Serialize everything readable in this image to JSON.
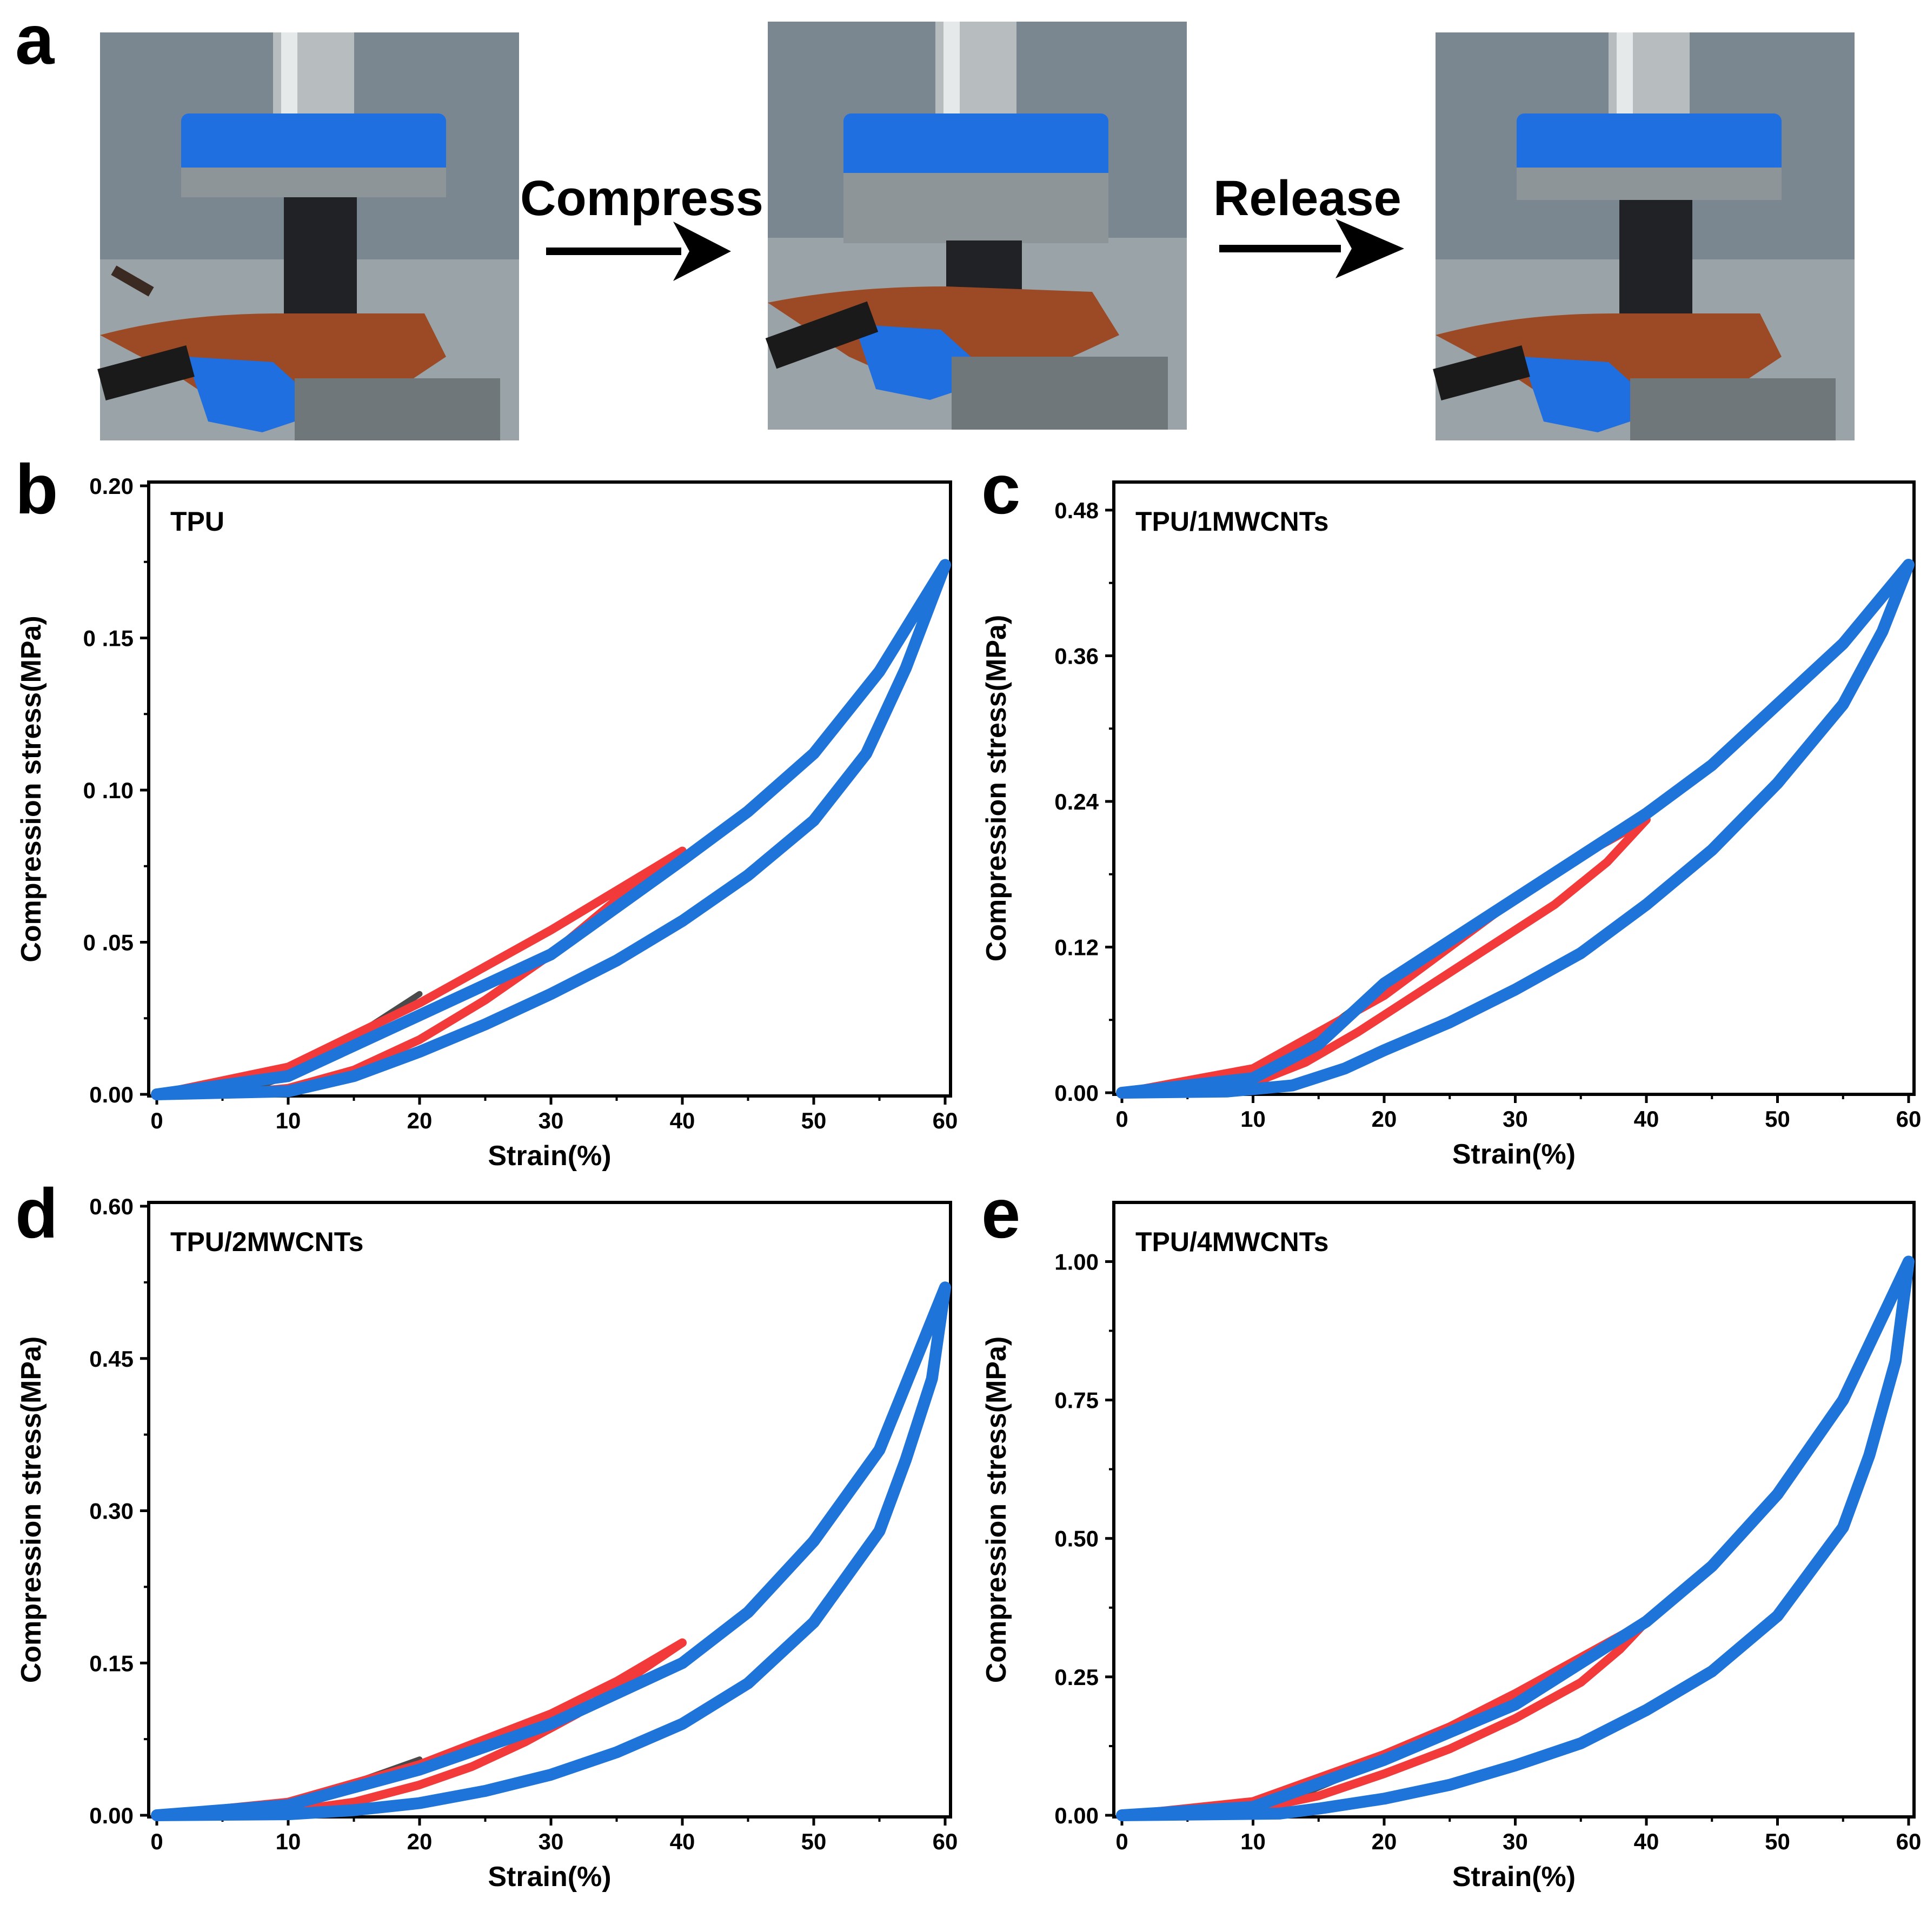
{
  "figure": {
    "panel_a_letter": "a",
    "arrows": [
      {
        "label": "Compress"
      },
      {
        "label": "Release"
      }
    ],
    "photos": [
      {
        "icon": "compression-test-photo-initial"
      },
      {
        "icon": "compression-test-photo-compressed"
      },
      {
        "icon": "compression-test-photo-released"
      }
    ]
  },
  "colors": {
    "cycle_20": "#4a4a4a",
    "cycle_40": "#f23a3a",
    "cycle_60": "#1f74d9",
    "tape": "#1f6fe0",
    "steel": "#9da3a6"
  },
  "chart_data": [
    {
      "panel": "b",
      "type": "line",
      "title": "TPU",
      "xlabel": "Strain(%)",
      "ylabel": "Compression stress(MPa)",
      "xlim": [
        0,
        60
      ],
      "ylim": [
        0,
        0.2
      ],
      "xticks": [
        0,
        10,
        20,
        30,
        40,
        50,
        60
      ],
      "yticks": [
        0.0,
        0.05,
        0.1,
        0.15,
        0.2
      ],
      "ytick_labels": [
        "0.00",
        "0 .05",
        "0 .10",
        "0 .15",
        "0.20"
      ],
      "series": [
        {
          "max_strain": 20,
          "loading": [
            [
              0,
              0
            ],
            [
              5,
              0.002
            ],
            [
              10,
              0.009
            ],
            [
              15,
              0.019
            ],
            [
              20,
              0.033
            ]
          ],
          "unloading": [
            [
              20,
              0.033
            ],
            [
              16,
              0.021
            ],
            [
              12,
              0.009
            ],
            [
              8,
              0.003
            ],
            [
              5,
              0.001
            ],
            [
              0,
              0
            ]
          ]
        },
        {
          "max_strain": 40,
          "loading": [
            [
              0,
              0
            ],
            [
              10,
              0.009
            ],
            [
              20,
              0.03
            ],
            [
              30,
              0.054
            ],
            [
              35,
              0.067
            ],
            [
              40,
              0.08
            ]
          ],
          "unloading": [
            [
              40,
              0.08
            ],
            [
              35,
              0.064
            ],
            [
              30,
              0.046
            ],
            [
              25,
              0.031
            ],
            [
              20,
              0.018
            ],
            [
              15,
              0.008
            ],
            [
              10,
              0.002
            ],
            [
              5,
              0
            ],
            [
              0,
              0
            ]
          ]
        },
        {
          "max_strain": 60,
          "loading": [
            [
              0,
              0
            ],
            [
              10,
              0.006
            ],
            [
              20,
              0.026
            ],
            [
              30,
              0.046
            ],
            [
              40,
              0.077
            ],
            [
              45,
              0.093
            ],
            [
              50,
              0.112
            ],
            [
              55,
              0.139
            ],
            [
              60,
              0.174
            ]
          ],
          "unloading": [
            [
              60,
              0.174
            ],
            [
              57,
              0.14
            ],
            [
              54,
              0.112
            ],
            [
              50,
              0.09
            ],
            [
              45,
              0.072
            ],
            [
              40,
              0.057
            ],
            [
              35,
              0.044
            ],
            [
              30,
              0.033
            ],
            [
              25,
              0.023
            ],
            [
              20,
              0.014
            ],
            [
              15,
              0.006
            ],
            [
              10,
              0.001
            ],
            [
              0,
              0
            ]
          ]
        }
      ]
    },
    {
      "panel": "c",
      "type": "line",
      "title": "TPU/1MWCNTs",
      "xlabel": "Strain(%)",
      "ylabel": "Compression stress(MPa)",
      "xlim": [
        0,
        60
      ],
      "ylim": [
        0,
        0.5
      ],
      "xticks": [
        0,
        10,
        20,
        30,
        40,
        50,
        60
      ],
      "yticks": [
        0.0,
        0.12,
        0.24,
        0.36,
        0.48
      ],
      "ytick_labels": [
        "0.00",
        "0.12",
        "0.24",
        "0.36",
        "0.48"
      ],
      "series": [
        {
          "max_strain": 20,
          "loading": [
            [
              0,
              0
            ],
            [
              5,
              0.003
            ],
            [
              10,
              0.018
            ],
            [
              15,
              0.048
            ],
            [
              20,
              0.088
            ]
          ],
          "unloading": [
            [
              20,
              0.088
            ],
            [
              17,
              0.058
            ],
            [
              14,
              0.033
            ],
            [
              11,
              0.015
            ],
            [
              8,
              0.005
            ],
            [
              4,
              0.001
            ],
            [
              0,
              0
            ]
          ]
        },
        {
          "max_strain": 40,
          "loading": [
            [
              0,
              0
            ],
            [
              10,
              0.02
            ],
            [
              20,
              0.08
            ],
            [
              25,
              0.12
            ],
            [
              30,
              0.16
            ],
            [
              35,
              0.195
            ],
            [
              40,
              0.225
            ]
          ],
          "unloading": [
            [
              40,
              0.225
            ],
            [
              37,
              0.19
            ],
            [
              33,
              0.155
            ],
            [
              28,
              0.12
            ],
            [
              23,
              0.085
            ],
            [
              18,
              0.05
            ],
            [
              14,
              0.025
            ],
            [
              10,
              0.008
            ],
            [
              5,
              0.001
            ],
            [
              0,
              0
            ]
          ]
        },
        {
          "max_strain": 60,
          "loading": [
            [
              0,
              0
            ],
            [
              10,
              0.012
            ],
            [
              15,
              0.04
            ],
            [
              20,
              0.09
            ],
            [
              30,
              0.16
            ],
            [
              40,
              0.23
            ],
            [
              45,
              0.27
            ],
            [
              50,
              0.32
            ],
            [
              55,
              0.37
            ],
            [
              60,
              0.435
            ]
          ],
          "unloading": [
            [
              60,
              0.435
            ],
            [
              58,
              0.38
            ],
            [
              55,
              0.32
            ],
            [
              50,
              0.255
            ],
            [
              45,
              0.2
            ],
            [
              40,
              0.155
            ],
            [
              35,
              0.115
            ],
            [
              30,
              0.085
            ],
            [
              25,
              0.058
            ],
            [
              20,
              0.035
            ],
            [
              17,
              0.02
            ],
            [
              13,
              0.006
            ],
            [
              8,
              0.001
            ],
            [
              0,
              0
            ]
          ]
        }
      ]
    },
    {
      "panel": "d",
      "type": "line",
      "title": "TPU/2MWCNTs",
      "xlabel": "Strain(%)",
      "ylabel": "Compression stress(MPa)",
      "xlim": [
        0,
        60
      ],
      "ylim": [
        0,
        0.6
      ],
      "xticks": [
        0,
        10,
        20,
        30,
        40,
        50,
        60
      ],
      "yticks": [
        0.0,
        0.15,
        0.3,
        0.45,
        0.6
      ],
      "ytick_labels": [
        "0.00",
        "0.15",
        "0.30",
        "0.45",
        "0.60"
      ],
      "series": [
        {
          "max_strain": 20,
          "loading": [
            [
              0,
              0
            ],
            [
              5,
              0.003
            ],
            [
              10,
              0.014
            ],
            [
              15,
              0.032
            ],
            [
              20,
              0.055
            ]
          ],
          "unloading": [
            [
              20,
              0.055
            ],
            [
              16,
              0.034
            ],
            [
              12,
              0.016
            ],
            [
              8,
              0.006
            ],
            [
              4,
              0.001
            ],
            [
              0,
              0
            ]
          ]
        },
        {
          "max_strain": 40,
          "loading": [
            [
              0,
              0
            ],
            [
              10,
              0.013
            ],
            [
              20,
              0.05
            ],
            [
              25,
              0.075
            ],
            [
              30,
              0.1
            ],
            [
              35,
              0.132
            ],
            [
              40,
              0.17
            ]
          ],
          "unloading": [
            [
              40,
              0.17
            ],
            [
              36,
              0.135
            ],
            [
              32,
              0.1
            ],
            [
              28,
              0.072
            ],
            [
              24,
              0.048
            ],
            [
              20,
              0.03
            ],
            [
              15,
              0.013
            ],
            [
              10,
              0.004
            ],
            [
              5,
              0.001
            ],
            [
              0,
              0
            ]
          ]
        },
        {
          "max_strain": 60,
          "loading": [
            [
              0,
              0
            ],
            [
              10,
              0.01
            ],
            [
              20,
              0.045
            ],
            [
              30,
              0.09
            ],
            [
              40,
              0.15
            ],
            [
              45,
              0.2
            ],
            [
              50,
              0.27
            ],
            [
              55,
              0.36
            ],
            [
              60,
              0.52
            ]
          ],
          "unloading": [
            [
              60,
              0.52
            ],
            [
              59,
              0.43
            ],
            [
              57,
              0.35
            ],
            [
              55,
              0.28
            ],
            [
              50,
              0.19
            ],
            [
              45,
              0.13
            ],
            [
              40,
              0.09
            ],
            [
              35,
              0.062
            ],
            [
              30,
              0.04
            ],
            [
              25,
              0.024
            ],
            [
              20,
              0.012
            ],
            [
              15,
              0.005
            ],
            [
              10,
              0.001
            ],
            [
              0,
              0
            ]
          ]
        }
      ]
    },
    {
      "panel": "e",
      "type": "line",
      "title": "TPU/4MWCNTs",
      "xlabel": "Strain(%)",
      "ylabel": "Compression stress(MPa)",
      "xlim": [
        0,
        60
      ],
      "ylim": [
        0,
        1.1
      ],
      "xticks": [
        0,
        10,
        20,
        30,
        40,
        50,
        60
      ],
      "yticks": [
        0.0,
        0.25,
        0.5,
        0.75,
        1.0
      ],
      "ytick_labels": [
        "0.00",
        "0.25",
        "0.50",
        "0.75",
        "1.00"
      ],
      "series": [
        {
          "max_strain": 20,
          "loading": [
            [
              0,
              0
            ],
            [
              5,
              0.003
            ],
            [
              10,
              0.025
            ],
            [
              15,
              0.06
            ],
            [
              20,
              0.105
            ]
          ],
          "unloading": [
            [
              20,
              0.105
            ],
            [
              17,
              0.07
            ],
            [
              14,
              0.04
            ],
            [
              11,
              0.018
            ],
            [
              7,
              0.004
            ],
            [
              3,
              0
            ],
            [
              0,
              0
            ]
          ]
        },
        {
          "max_strain": 40,
          "loading": [
            [
              0,
              0
            ],
            [
              10,
              0.025
            ],
            [
              20,
              0.11
            ],
            [
              25,
              0.16
            ],
            [
              30,
              0.22
            ],
            [
              35,
              0.285
            ],
            [
              40,
              0.35
            ]
          ],
          "unloading": [
            [
              40,
              0.35
            ],
            [
              38,
              0.3
            ],
            [
              35,
              0.24
            ],
            [
              30,
              0.175
            ],
            [
              25,
              0.12
            ],
            [
              20,
              0.075
            ],
            [
              15,
              0.035
            ],
            [
              10,
              0.01
            ],
            [
              5,
              0
            ],
            [
              0,
              0
            ]
          ]
        },
        {
          "max_strain": 60,
          "loading": [
            [
              0,
              0
            ],
            [
              10,
              0.015
            ],
            [
              20,
              0.1
            ],
            [
              30,
              0.2
            ],
            [
              40,
              0.35
            ],
            [
              45,
              0.45
            ],
            [
              50,
              0.58
            ],
            [
              55,
              0.75
            ],
            [
              60,
              1.0
            ]
          ],
          "unloading": [
            [
              60,
              1.0
            ],
            [
              59,
              0.82
            ],
            [
              57,
              0.65
            ],
            [
              55,
              0.52
            ],
            [
              50,
              0.36
            ],
            [
              45,
              0.26
            ],
            [
              40,
              0.19
            ],
            [
              35,
              0.13
            ],
            [
              30,
              0.09
            ],
            [
              25,
              0.055
            ],
            [
              20,
              0.03
            ],
            [
              15,
              0.012
            ],
            [
              12,
              0.003
            ],
            [
              0,
              0
            ]
          ]
        }
      ]
    }
  ]
}
